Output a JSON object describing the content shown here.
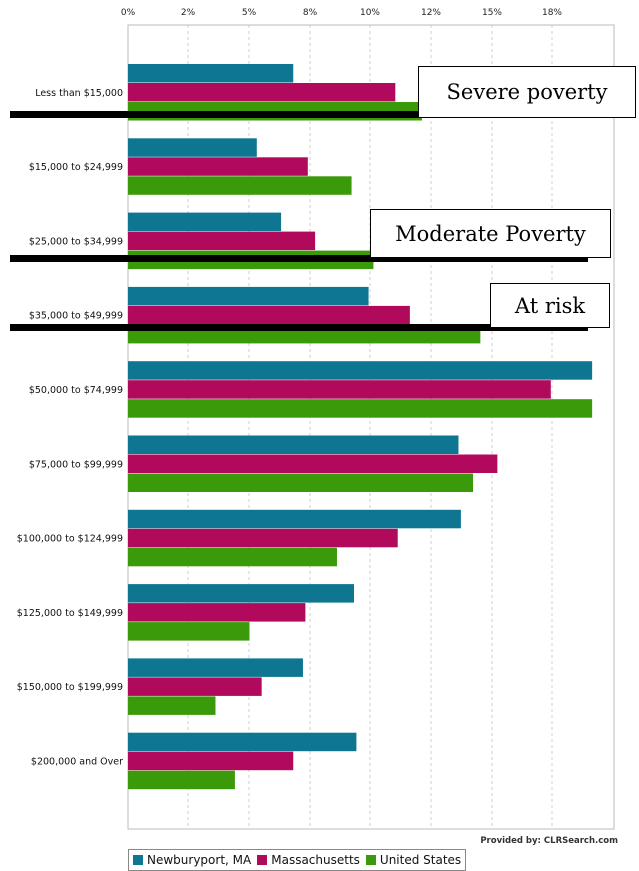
{
  "chart_data": {
    "type": "bar",
    "orientation": "horizontal",
    "categories": [
      "Less than $15,000",
      "$15,000 to $24,999",
      "$25,000 to $34,999",
      "$35,000 to $49,999",
      "$50,000 to $74,999",
      "$75,000 to $99,999",
      "$100,000 to $124,999",
      "$125,000 to $149,999",
      "$150,000 to $199,999",
      "$200,000 and Over"
    ],
    "series": [
      {
        "name": "Newburyport, MA",
        "color": "#0f7692",
        "values": [
          6.8,
          5.3,
          6.3,
          9.9,
          19.1,
          13.6,
          13.7,
          9.3,
          7.2,
          9.4
        ]
      },
      {
        "name": "Massachusetts",
        "color": "#b10a5c",
        "values": [
          11.0,
          7.4,
          7.7,
          11.6,
          17.4,
          15.2,
          11.1,
          7.3,
          5.5,
          6.8
        ]
      },
      {
        "name": "United States",
        "color": "#3a9a0a",
        "values": [
          12.1,
          9.2,
          10.1,
          14.5,
          19.1,
          14.2,
          8.6,
          5.0,
          3.6,
          4.4
        ]
      }
    ],
    "x_ticks": [
      "0%",
      "2%",
      "5%",
      "8%",
      "10%",
      "12%",
      "15%",
      "18%"
    ],
    "xlim": [
      0,
      20
    ],
    "grid": true,
    "legend_position": "bottom",
    "credit": "Provided by: CLRSearch.com"
  },
  "annotations": [
    {
      "text": "Severe poverty",
      "category_index": 0
    },
    {
      "text": "Moderate Poverty",
      "category_index": 2
    },
    {
      "text": "At risk",
      "category_index": 3
    }
  ]
}
